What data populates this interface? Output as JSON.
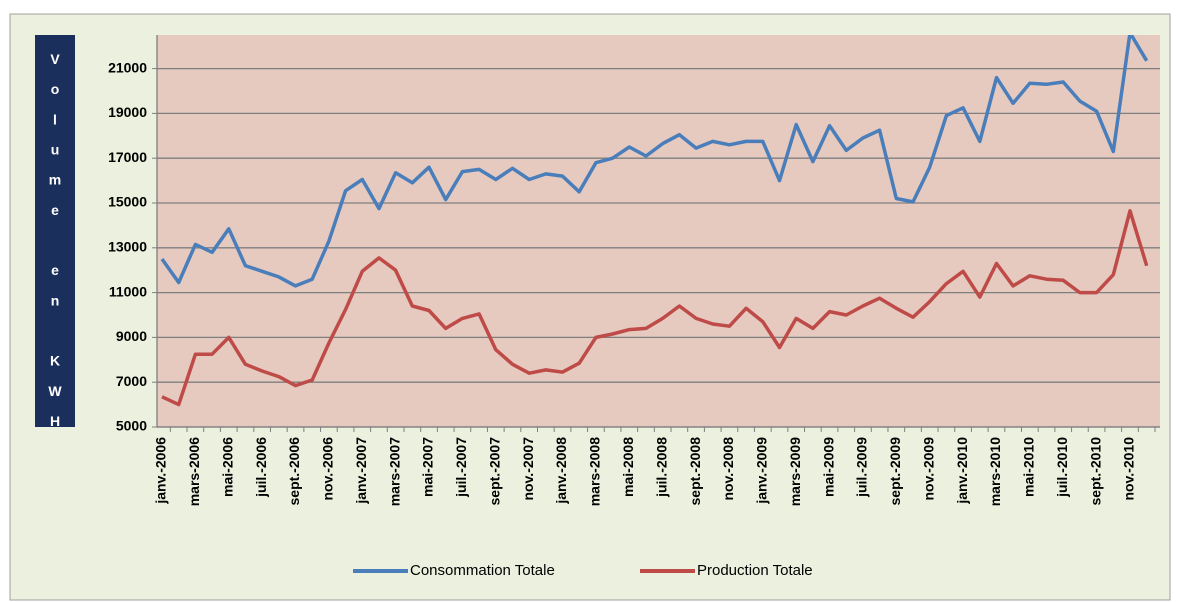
{
  "chart_data": {
    "type": "line",
    "y_axis_label": "Volume en KWH",
    "categories": [
      "janv.-2006",
      null,
      "mars-2006",
      null,
      "mai-2006",
      null,
      "juil.-2006",
      null,
      "sept.-2006",
      null,
      "nov.-2006",
      null,
      "janv.-2007",
      null,
      "mars-2007",
      null,
      "mai-2007",
      null,
      "juil.-2007",
      null,
      "sept.-2007",
      null,
      "nov.-2007",
      null,
      "janv.-2008",
      null,
      "mars-2008",
      null,
      "mai-2008",
      null,
      "juil.-2008",
      null,
      "sept.-2008",
      null,
      "nov.-2008",
      null,
      "janv.-2009",
      null,
      "mars-2009",
      null,
      "mai-2009",
      null,
      "juil.-2009",
      null,
      "sept.-2009",
      null,
      "nov.-2009",
      null,
      "janv.-2010",
      null,
      "mars-2010",
      null,
      "mai-2010",
      null,
      "juil.-2010",
      null,
      "sept.-2010",
      null,
      "nov.-2010",
      null
    ],
    "series": [
      {
        "name": "Consommation Totale",
        "color": "#4a7ebb",
        "values": [
          12500,
          11450,
          13150,
          12800,
          13850,
          12200,
          11950,
          11700,
          11300,
          11600,
          13300,
          15550,
          16050,
          14750,
          16350,
          15900,
          16600,
          15150,
          16400,
          16500,
          16050,
          16550,
          16050,
          16300,
          16200,
          15500,
          16800,
          17000,
          17500,
          17100,
          17650,
          18050,
          17450,
          17750,
          17600,
          17750,
          17750,
          16000,
          18500,
          16850,
          18450,
          17350,
          17900,
          18250,
          15200,
          15050,
          16600,
          18900,
          19250,
          17750,
          20600,
          19450,
          20350,
          20300,
          20400,
          19550,
          19100,
          17300,
          22600,
          21350
        ]
      },
      {
        "name": "Production Totale",
        "color": "#be4b48",
        "values": [
          6350,
          6000,
          8250,
          8250,
          9000,
          7800,
          7500,
          7250,
          6850,
          7100,
          8750,
          10250,
          11950,
          12550,
          12000,
          10400,
          10200,
          9400,
          9850,
          10050,
          8450,
          7800,
          7400,
          7550,
          7450,
          7850,
          9000,
          9150,
          9350,
          9400,
          9850,
          10400,
          9850,
          9600,
          9500,
          10300,
          9700,
          8550,
          9850,
          9400,
          10150,
          10000,
          10400,
          10750,
          10300,
          9900,
          10600,
          11400,
          11950,
          10800,
          12300,
          11300,
          11750,
          11600,
          11550,
          11000,
          11000,
          11800,
          14650,
          12200
        ]
      }
    ],
    "ylim": [
      5000,
      22500
    ],
    "yticks": [
      5000,
      7000,
      9000,
      11000,
      13000,
      15000,
      17000,
      19000,
      21000
    ],
    "grid": true,
    "legend": "bottom"
  }
}
